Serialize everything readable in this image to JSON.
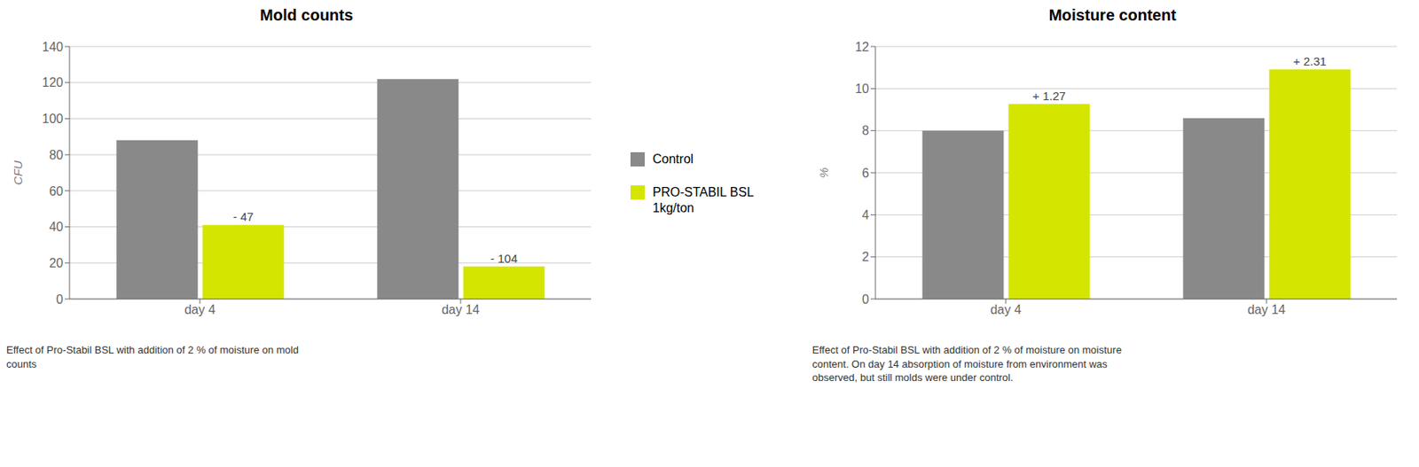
{
  "chart_data": [
    {
      "type": "bar",
      "title": "Mold counts",
      "ylabel": "CFU",
      "ylim": [
        0,
        140
      ],
      "yticks": [
        0,
        20,
        40,
        60,
        80,
        100,
        120,
        140
      ],
      "grid": true,
      "categories": [
        "day 4",
        "day 14"
      ],
      "series": [
        {
          "name": "Control",
          "color": "#898989",
          "values": [
            88,
            122
          ]
        },
        {
          "name": "PRO-STABIL BSL\n1kg/ton",
          "color": "#d4e600",
          "values": [
            41,
            18
          ]
        }
      ],
      "annotations": [
        "- 47",
        "- 104"
      ],
      "caption": "Effect of Pro-Stabil BSL with addition of 2 % of moisture on mold\ncounts"
    },
    {
      "type": "bar",
      "title": "Moisture content",
      "ylabel": "%",
      "ylim": [
        0,
        12
      ],
      "yticks": [
        0,
        2,
        4,
        6,
        8,
        10,
        12
      ],
      "grid": true,
      "categories": [
        "day 4",
        "day 14"
      ],
      "series": [
        {
          "name": "Control",
          "color": "#898989",
          "values": [
            8.0,
            8.6
          ]
        },
        {
          "name": "PRO-STABIL BSL\n1kg/ton",
          "color": "#d4e600",
          "values": [
            9.27,
            10.91
          ]
        }
      ],
      "annotations": [
        "+ 1.27",
        "+ 2.31"
      ],
      "caption": "Effect of Pro-Stabil BSL with addition of 2 % of moisture on moisture\ncontent. On day 14 absorption of moisture from environment was\nobserved, but still molds were under control."
    }
  ]
}
